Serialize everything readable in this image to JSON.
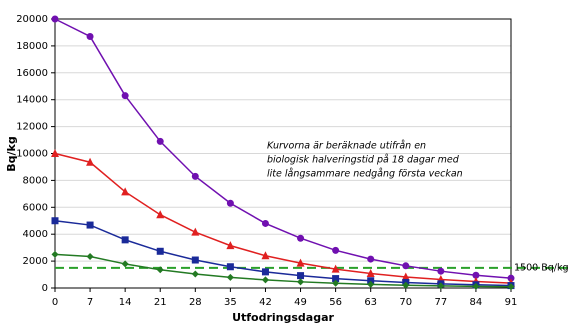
{
  "chart_data": {
    "type": "line",
    "y_label": "Bq/kg",
    "x_label": "Utfodringsdagar",
    "x": [
      0,
      7,
      14,
      21,
      28,
      35,
      42,
      49,
      56,
      63,
      70,
      77,
      84,
      91
    ],
    "series": [
      {
        "color": "#7010b0",
        "marker": "circle",
        "values": [
          20000,
          18700,
          14300,
          10900,
          8300,
          6300,
          4800,
          3700,
          2800,
          2150,
          1650,
          1250,
          950,
          730
        ]
      },
      {
        "color": "#e02020",
        "marker": "triangle",
        "values": [
          10000,
          9350,
          7150,
          5450,
          4150,
          3150,
          2400,
          1850,
          1400,
          1080,
          820,
          630,
          480,
          370
        ]
      },
      {
        "color": "#1a2a99",
        "marker": "square",
        "values": [
          5000,
          4680,
          3580,
          2730,
          2080,
          1580,
          1200,
          920,
          700,
          540,
          410,
          310,
          240,
          180
        ]
      },
      {
        "color": "#237a23",
        "marker": "diamond",
        "values": [
          2500,
          2340,
          1790,
          1360,
          1040,
          790,
          600,
          460,
          350,
          270,
          205,
          160,
          120,
          90
        ]
      }
    ],
    "reference_line": {
      "value": 1500,
      "label": "1500 Bq/kg",
      "color": "#2aa02a"
    },
    "annotation": [
      "Kurvorna är beräknade utifrån en",
      "biologisk halveringstid på 18 dagar med",
      "lite långsammare nedgång första veckan"
    ],
    "xlim": [
      0,
      91
    ],
    "xticks": [
      0,
      7,
      14,
      21,
      28,
      35,
      42,
      49,
      56,
      63,
      70,
      77,
      84,
      91
    ],
    "ylim": [
      0,
      20000
    ],
    "yticks": [
      0,
      2000,
      4000,
      6000,
      8000,
      10000,
      12000,
      14000,
      16000,
      18000,
      20000
    ],
    "grid": true
  }
}
